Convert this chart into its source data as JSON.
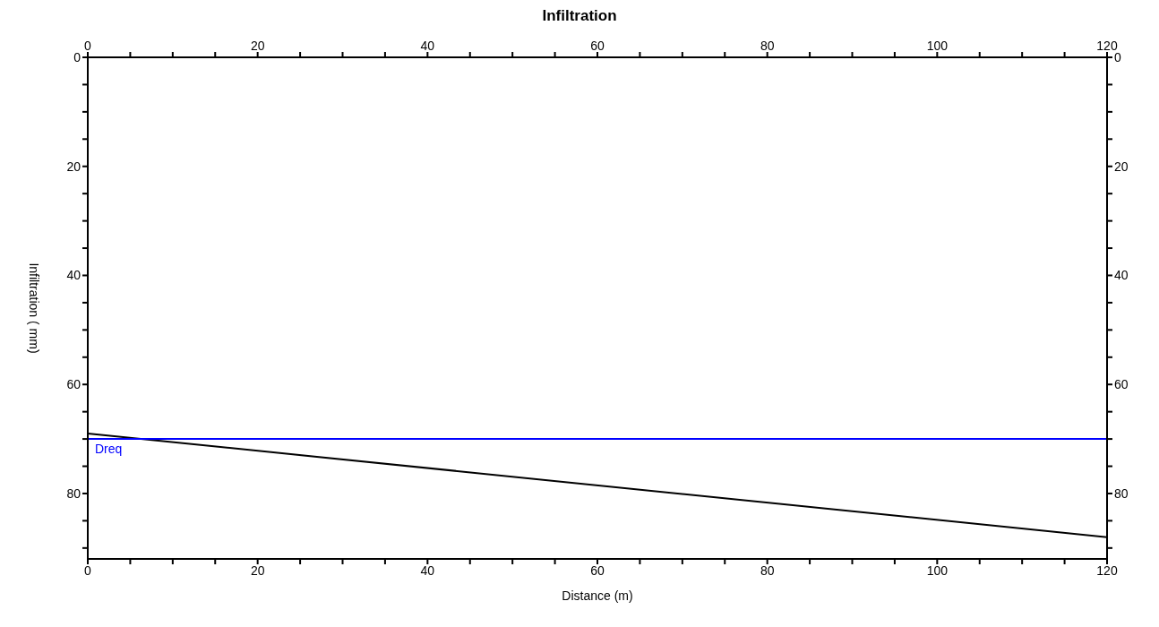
{
  "chart_data": {
    "type": "line",
    "title": "Infiltration",
    "xlabel": "Distance (m)",
    "ylabel": "Infiltration ( mm)",
    "series": [
      {
        "color": "#000000",
        "x": [
          0,
          120
        ],
        "values": [
          69,
          88
        ]
      }
    ],
    "xlim": [
      0,
      120
    ],
    "xticks": [
      0,
      {
        "value": 5,
        "label": null
      },
      {
        "value": 10,
        "label": null
      },
      {
        "value": 15,
        "label": null
      },
      20,
      {
        "value": 25,
        "label": null
      },
      {
        "value": 30,
        "label": null
      },
      {
        "value": 35,
        "label": null
      },
      40,
      {
        "value": 45,
        "label": null
      },
      {
        "value": 50,
        "label": null
      },
      {
        "value": 55,
        "label": null
      },
      60,
      {
        "value": 65,
        "label": null
      },
      {
        "value": 70,
        "label": null
      },
      {
        "value": 75,
        "label": null
      },
      80,
      {
        "value": 85,
        "label": null
      },
      {
        "value": 90,
        "label": null
      },
      {
        "value": 95,
        "label": null
      },
      100,
      {
        "value": 105,
        "label": null
      },
      {
        "value": 110,
        "label": null
      },
      {
        "value": 115,
        "label": null
      },
      120
    ],
    "x2lim": [
      0,
      120
    ],
    "x2ticks": [
      0,
      {
        "value": 5,
        "label": null
      },
      {
        "value": 10,
        "label": null
      },
      {
        "value": 15,
        "label": null
      },
      20,
      {
        "value": 25,
        "label": null
      },
      {
        "value": 30,
        "label": null
      },
      {
        "value": 35,
        "label": null
      },
      40,
      {
        "value": 45,
        "label": null
      },
      {
        "value": 50,
        "label": null
      },
      {
        "value": 55,
        "label": null
      },
      60,
      {
        "value": 65,
        "label": null
      },
      {
        "value": 70,
        "label": null
      },
      {
        "value": 75,
        "label": null
      },
      80,
      {
        "value": 85,
        "label": null
      },
      {
        "value": 90,
        "label": null
      },
      {
        "value": 95,
        "label": null
      },
      100,
      {
        "value": 105,
        "label": null
      },
      {
        "value": 110,
        "label": null
      },
      {
        "value": 115,
        "label": null
      },
      120
    ],
    "ylim": [
      92,
      0
    ],
    "yticks": [
      0,
      {
        "value": 5,
        "label": null
      },
      {
        "value": 10,
        "label": null
      },
      {
        "value": 15,
        "label": null
      },
      20,
      {
        "value": 25,
        "label": null
      },
      {
        "value": 30,
        "label": null
      },
      {
        "value": 35,
        "label": null
      },
      40,
      {
        "value": 45,
        "label": null
      },
      {
        "value": 50,
        "label": null
      },
      {
        "value": 55,
        "label": null
      },
      60,
      {
        "value": 65,
        "label": null
      },
      {
        "value": 70,
        "label": null
      },
      {
        "value": 75,
        "label": null
      },
      80,
      {
        "value": 85,
        "label": null
      },
      {
        "value": 90,
        "label": null
      }
    ],
    "y2lim": [
      92,
      0
    ],
    "y2ticks": [
      0,
      {
        "value": 5,
        "label": null
      },
      {
        "value": 10,
        "label": null
      },
      {
        "value": 15,
        "label": null
      },
      20,
      {
        "value": 25,
        "label": null
      },
      {
        "value": 30,
        "label": null
      },
      {
        "value": 35,
        "label": null
      },
      40,
      {
        "value": 45,
        "label": null
      },
      {
        "value": 50,
        "label": null
      },
      {
        "value": 55,
        "label": null
      },
      60,
      {
        "value": 65,
        "label": null
      },
      {
        "value": 70,
        "label": null
      },
      {
        "value": 75,
        "label": null
      },
      80,
      {
        "value": 85,
        "label": null
      },
      {
        "value": 90,
        "label": null
      }
    ],
    "ref_lines": [
      {
        "axis": "y",
        "value": 70,
        "label": "Dreq",
        "color": "#0000ff"
      }
    ],
    "grid": false,
    "marker": "none",
    "line_style": "solid"
  }
}
